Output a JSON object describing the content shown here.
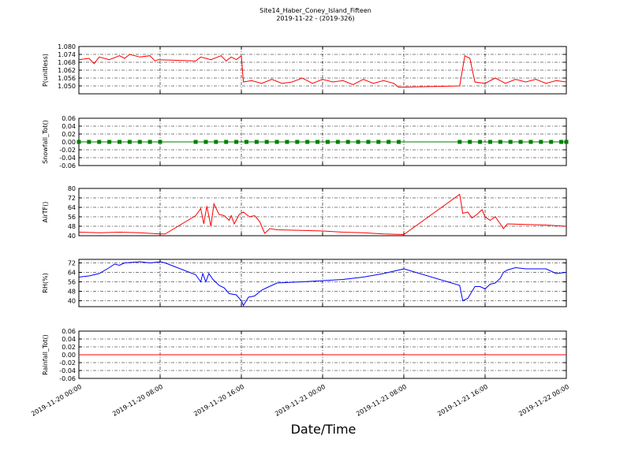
{
  "chart_data": [
    {
      "type": "line",
      "title": "Site14_Haber_Coney_Island_Fifteen",
      "subtitle": "2019-11-22 - (2019-326)",
      "ylabel": "P(unitless)",
      "ylim": [
        1.044,
        1.08
      ],
      "yticks": [
        {
          "value": 1.05,
          "label": "1.050"
        },
        1.056,
        1.062,
        1.068,
        1.074,
        {
          "value": 1.08,
          "label": "1.080"
        }
      ],
      "grid": true,
      "x": [
        "2019-11-20 00:00",
        "2019-11-20 01:00",
        "2019-11-20 01:30",
        "2019-11-20 02:00",
        "2019-11-20 03:00",
        "2019-11-20 04:00",
        "2019-11-20 04:30",
        "2019-11-20 05:00",
        "2019-11-20 06:00",
        "2019-11-20 07:00",
        "2019-11-20 07:30",
        "2019-11-20 07:48",
        "2019-11-20 11:30",
        "2019-11-20 12:00",
        "2019-11-20 13:00",
        "2019-11-20 14:00",
        "2019-11-20 14:30",
        "2019-11-20 15:00",
        "2019-11-20 15:30",
        "2019-11-20 16:00",
        "2019-11-20 16:12",
        "2019-11-20 17:00",
        "2019-11-20 18:00",
        "2019-11-20 19:00",
        "2019-11-20 20:00",
        "2019-11-20 21:00",
        "2019-11-20 22:00",
        "2019-11-20 23:00",
        "2019-11-21 00:00",
        "2019-11-21 01:00",
        "2019-11-21 02:00",
        "2019-11-21 03:00",
        "2019-11-21 04:00",
        "2019-11-21 05:00",
        "2019-11-21 06:00",
        "2019-11-21 07:00",
        "2019-11-21 07:30",
        "2019-11-21 13:30",
        "2019-11-21 14:00",
        "2019-11-21 14:30",
        "2019-11-21 15:00",
        "2019-11-21 16:00",
        "2019-11-21 17:00",
        "2019-11-21 18:00",
        "2019-11-21 19:00",
        "2019-11-21 20:00",
        "2019-11-21 21:00",
        "2019-11-21 22:00",
        "2019-11-21 23:00",
        "2019-11-22 00:00"
      ],
      "series": [
        {
          "color": "#ff0000",
          "values": [
            1.07,
            1.071,
            1.067,
            1.072,
            1.07,
            1.073,
            1.071,
            1.074,
            1.072,
            1.073,
            1.069,
            1.07,
            1.069,
            1.072,
            1.07,
            1.073,
            1.069,
            1.072,
            1.07,
            1.073,
            1.053,
            1.054,
            1.052,
            1.055,
            1.052,
            1.053,
            1.056,
            1.052,
            1.055,
            1.053,
            1.054,
            1.051,
            1.055,
            1.052,
            1.054,
            1.052,
            1.049,
            1.05,
            1.073,
            1.071,
            1.053,
            1.052,
            1.056,
            1.052,
            1.055,
            1.053,
            1.055,
            1.052,
            1.054,
            1.053
          ]
        }
      ]
    },
    {
      "type": "line",
      "ylabel": "Snowfall_Tot()",
      "marker": "square",
      "ylim": [
        -0.06,
        0.06
      ],
      "yticks": [
        -0.06,
        -0.04,
        -0.02,
        {
          "value": 0,
          "label": "0.00"
        },
        0.02,
        0.04,
        0.06
      ],
      "grid": true,
      "x": [
        "2019-11-20 00:00",
        "2019-11-20 01:00",
        "2019-11-20 02:00",
        "2019-11-20 03:00",
        "2019-11-20 04:00",
        "2019-11-20 05:00",
        "2019-11-20 06:00",
        "2019-11-20 07:00",
        "2019-11-20 08:00",
        "2019-11-20 11:30",
        "2019-11-20 12:30",
        "2019-11-20 13:30",
        "2019-11-20 14:30",
        "2019-11-20 15:30",
        "2019-11-20 16:30",
        "2019-11-20 17:30",
        "2019-11-20 18:30",
        "2019-11-20 19:30",
        "2019-11-20 20:30",
        "2019-11-20 21:30",
        "2019-11-20 22:30",
        "2019-11-20 23:30",
        "2019-11-21 00:30",
        "2019-11-21 01:30",
        "2019-11-21 02:30",
        "2019-11-21 03:30",
        "2019-11-21 04:30",
        "2019-11-21 05:30",
        "2019-11-21 06:30",
        "2019-11-21 07:30",
        "2019-11-21 13:30",
        "2019-11-21 14:30",
        "2019-11-21 15:30",
        "2019-11-21 16:30",
        "2019-11-21 17:30",
        "2019-11-21 18:30",
        "2019-11-21 19:30",
        "2019-11-21 20:30",
        "2019-11-21 21:30",
        "2019-11-21 22:30",
        "2019-11-21 23:30",
        "2019-11-22 00:00"
      ],
      "series": [
        {
          "color": "#008000",
          "values": [
            0,
            0,
            0,
            0,
            0,
            0,
            0,
            0,
            0,
            0,
            0,
            0,
            0,
            0,
            0,
            0,
            0,
            0,
            0,
            0,
            0,
            0,
            0,
            0,
            0,
            0,
            0,
            0,
            0,
            0,
            0,
            0,
            0,
            0,
            0,
            0,
            0,
            0,
            0,
            0,
            0,
            0
          ]
        }
      ]
    },
    {
      "type": "line",
      "ylabel": "AirTF()",
      "ylim": [
        40,
        80
      ],
      "yticks": [
        40,
        48,
        56,
        64,
        72,
        80
      ],
      "grid": true,
      "x": [
        "2019-11-20 00:00",
        "2019-11-20 02:00",
        "2019-11-20 04:00",
        "2019-11-20 06:00",
        "2019-11-20 08:00",
        "2019-11-20 08:30",
        "2019-11-20 11:30",
        "2019-11-20 12:00",
        "2019-11-20 12:18",
        "2019-11-20 12:36",
        "2019-11-20 13:00",
        "2019-11-20 13:18",
        "2019-11-20 13:48",
        "2019-11-20 14:18",
        "2019-11-20 14:48",
        "2019-11-20 15:00",
        "2019-11-20 15:18",
        "2019-11-20 15:48",
        "2019-11-20 16:12",
        "2019-11-20 16:48",
        "2019-11-20 17:18",
        "2019-11-20 17:48",
        "2019-11-20 18:18",
        "2019-11-20 18:48",
        "2019-11-20 19:30",
        "2019-11-20 22:00",
        "2019-11-21 00:00",
        "2019-11-21 02:00",
        "2019-11-21 04:00",
        "2019-11-21 06:00",
        "2019-11-21 08:00",
        "2019-11-21 13:30",
        "2019-11-21 13:48",
        "2019-11-21 14:18",
        "2019-11-21 14:42",
        "2019-11-21 15:12",
        "2019-11-21 15:42",
        "2019-11-21 16:00",
        "2019-11-21 16:30",
        "2019-11-21 17:00",
        "2019-11-21 17:30",
        "2019-11-21 17:48",
        "2019-11-21 18:12",
        "2019-11-21 20:00",
        "2019-11-21 22:00",
        "2019-11-22 00:00"
      ],
      "series": [
        {
          "color": "#ff0000",
          "values": [
            43,
            42.5,
            43,
            42.5,
            41.5,
            41.5,
            57,
            63,
            50,
            65,
            48,
            67,
            58,
            57,
            53,
            57,
            50,
            58,
            60,
            56,
            57,
            52,
            42,
            46,
            45,
            44.5,
            44,
            43,
            42.5,
            41.5,
            41,
            75,
            59,
            60,
            55,
            58,
            62,
            56,
            53,
            56,
            50,
            46,
            50,
            49.5,
            49,
            48
          ]
        }
      ]
    },
    {
      "type": "line",
      "ylabel": "RH(%)",
      "ylim": [
        35,
        75
      ],
      "yticks": [
        40,
        48,
        56,
        64,
        72
      ],
      "grid": true,
      "x": [
        "2019-11-20 00:00",
        "2019-11-20 01:00",
        "2019-11-20 02:00",
        "2019-11-20 03:00",
        "2019-11-20 03:30",
        "2019-11-20 04:00",
        "2019-11-20 04:30",
        "2019-11-20 06:00",
        "2019-11-20 07:00",
        "2019-11-20 08:00",
        "2019-11-20 08:30",
        "2019-11-20 11:30",
        "2019-11-20 12:00",
        "2019-11-20 12:12",
        "2019-11-20 12:30",
        "2019-11-20 12:48",
        "2019-11-20 13:12",
        "2019-11-20 13:48",
        "2019-11-20 14:18",
        "2019-11-20 14:48",
        "2019-11-20 15:30",
        "2019-11-20 16:00",
        "2019-11-20 16:12",
        "2019-11-20 16:42",
        "2019-11-20 17:18",
        "2019-11-20 18:00",
        "2019-11-20 18:30",
        "2019-11-20 19:30",
        "2019-11-20 22:00",
        "2019-11-21 00:00",
        "2019-11-21 02:00",
        "2019-11-21 04:00",
        "2019-11-21 06:00",
        "2019-11-21 07:30",
        "2019-11-21 08:00",
        "2019-11-21 13:30",
        "2019-11-21 13:48",
        "2019-11-21 14:18",
        "2019-11-21 15:00",
        "2019-11-21 15:30",
        "2019-11-21 16:00",
        "2019-11-21 16:30",
        "2019-11-21 17:00",
        "2019-11-21 17:30",
        "2019-11-21 17:48",
        "2019-11-21 18:12",
        "2019-11-21 19:00",
        "2019-11-21 20:00",
        "2019-11-21 22:00",
        "2019-11-21 23:00",
        "2019-11-22 00:00"
      ],
      "series": [
        {
          "color": "#0000ff",
          "values": [
            60,
            61,
            63,
            68,
            71,
            70,
            72,
            73,
            72,
            73,
            72,
            62,
            56,
            63,
            56,
            63,
            58,
            53,
            51,
            46,
            45,
            40,
            36,
            43,
            44,
            49,
            51,
            55,
            56,
            57,
            58,
            60,
            63,
            66,
            67,
            53,
            40,
            42,
            52,
            52,
            50,
            54,
            55,
            59,
            64,
            66,
            68,
            67,
            67,
            63,
            64
          ]
        }
      ]
    },
    {
      "type": "line",
      "ylabel": "Rainfall_Tot()",
      "xlabel": "Date/Time",
      "ylim": [
        -0.06,
        0.06
      ],
      "yticks": [
        -0.06,
        -0.04,
        -0.02,
        {
          "value": 0,
          "label": "0.00"
        },
        0.02,
        0.04,
        0.06
      ],
      "grid": true,
      "xlim": [
        "2019-11-20 00:00",
        "2019-11-22 00:00"
      ],
      "xticks": [
        "2019-11-20 00:00",
        "2019-11-20 08:00",
        "2019-11-20 16:00",
        "2019-11-21 00:00",
        "2019-11-21 08:00",
        "2019-11-21 16:00",
        "2019-11-22 00:00"
      ],
      "x": [
        "2019-11-20 00:00",
        "2019-11-20 08:00",
        "2019-11-20 16:00",
        "2019-11-21 00:00",
        "2019-11-21 08:00",
        "2019-11-21 16:00",
        "2019-11-22 00:00"
      ],
      "series": [
        {
          "color": "#ff0000",
          "values": [
            0,
            0,
            0,
            0,
            0,
            0,
            0
          ]
        }
      ]
    }
  ]
}
